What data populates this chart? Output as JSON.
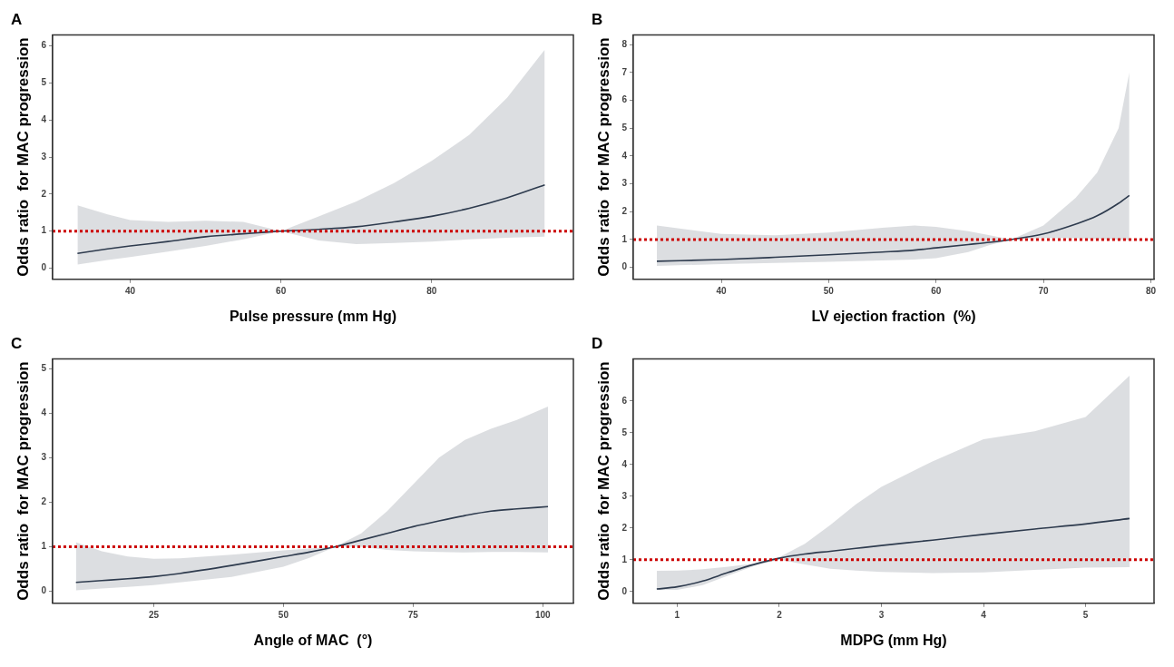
{
  "chart_data": [
    {
      "type": "line",
      "title": "A",
      "xlabel": "Pulse pressure (mm Hg)",
      "ylabel": "Odds ratio  for MAC progression",
      "xlim": [
        29.7,
        98.8
      ],
      "xticks": [
        40,
        60,
        80
      ],
      "ylim": [
        -0.3,
        6.3
      ],
      "yticks": [
        0,
        1,
        2,
        3,
        4,
        5,
        6
      ],
      "grid": false,
      "legend": false,
      "line_style": "solid",
      "marker": "none",
      "series": [
        {
          "color": "#2e3b4e",
          "x": [
            33,
            37,
            40,
            45,
            50,
            55,
            60,
            65,
            70,
            75,
            80,
            85,
            90,
            95
          ],
          "values": [
            0.4,
            0.52,
            0.6,
            0.72,
            0.85,
            0.93,
            1.0,
            1.05,
            1.12,
            1.25,
            1.4,
            1.62,
            1.9,
            2.25
          ],
          "lower": [
            0.1,
            0.22,
            0.3,
            0.45,
            0.6,
            0.78,
            1.0,
            0.75,
            0.65,
            0.68,
            0.72,
            0.78,
            0.82,
            0.85
          ],
          "upper": [
            1.7,
            1.45,
            1.3,
            1.25,
            1.28,
            1.25,
            1.0,
            1.4,
            1.8,
            2.3,
            2.9,
            3.6,
            4.6,
            5.9
          ]
        }
      ],
      "ref_lines": [
        {
          "axis": "y",
          "value": 1,
          "color": "#cc0000",
          "line_style": "dotted"
        }
      ]
    },
    {
      "type": "line",
      "title": "B",
      "xlabel": "LV ejection fraction  (%)",
      "ylabel": "Odds ratio  for MAC progression",
      "xlim": [
        31.8,
        80.3
      ],
      "xticks": [
        40,
        50,
        60,
        70,
        80
      ],
      "ylim": [
        -0.43,
        8.35
      ],
      "yticks": [
        0,
        1,
        2,
        3,
        4,
        5,
        6,
        7,
        8
      ],
      "grid": false,
      "legend": false,
      "line_style": "solid",
      "marker": "none",
      "series": [
        {
          "color": "#2e3b4e",
          "x": [
            34,
            40,
            45,
            50,
            55,
            58,
            60,
            63,
            65,
            67,
            70,
            73,
            75,
            77,
            78
          ],
          "values": [
            0.22,
            0.28,
            0.36,
            0.45,
            0.55,
            0.62,
            0.7,
            0.82,
            0.9,
            1.0,
            1.2,
            1.55,
            1.85,
            2.3,
            2.58
          ],
          "lower": [
            0.05,
            0.12,
            0.16,
            0.2,
            0.25,
            0.28,
            0.33,
            0.55,
            0.8,
            1.0,
            1.05,
            1.05,
            1.02,
            1.0,
            0.98
          ],
          "upper": [
            1.5,
            1.2,
            1.15,
            1.25,
            1.42,
            1.5,
            1.45,
            1.3,
            1.15,
            1.0,
            1.5,
            2.5,
            3.4,
            5.0,
            7.0
          ]
        }
      ],
      "ref_lines": [
        {
          "axis": "y",
          "value": 1,
          "color": "#cc0000",
          "line_style": "dotted"
        }
      ]
    },
    {
      "type": "line",
      "title": "C",
      "xlabel": "Angle of MAC  (°)",
      "ylabel": "Odds ratio  for MAC progression",
      "xlim": [
        5.5,
        105.9
      ],
      "xticks": [
        25,
        50,
        75,
        100
      ],
      "ylim": [
        -0.27,
        5.22
      ],
      "yticks": [
        0,
        1,
        2,
        3,
        4,
        5
      ],
      "grid": false,
      "legend": false,
      "line_style": "solid",
      "marker": "none",
      "series": [
        {
          "color": "#2e3b4e",
          "x": [
            10,
            15,
            20,
            25,
            30,
            40,
            50,
            55,
            60,
            65,
            70,
            75,
            80,
            85,
            90,
            95,
            101
          ],
          "values": [
            0.2,
            0.24,
            0.28,
            0.33,
            0.4,
            0.58,
            0.78,
            0.88,
            1.0,
            1.15,
            1.3,
            1.45,
            1.58,
            1.7,
            1.8,
            1.85,
            1.9
          ],
          "lower": [
            0.02,
            0.06,
            0.1,
            0.14,
            0.2,
            0.32,
            0.55,
            0.75,
            1.0,
            1.0,
            0.93,
            0.9,
            0.88,
            0.87,
            0.88,
            0.88,
            0.87
          ],
          "upper": [
            1.1,
            0.9,
            0.78,
            0.73,
            0.74,
            0.82,
            0.92,
            0.96,
            1.0,
            1.3,
            1.8,
            2.4,
            3.0,
            3.4,
            3.65,
            3.85,
            4.15
          ]
        }
      ],
      "ref_lines": [
        {
          "axis": "y",
          "value": 1,
          "color": "#cc0000",
          "line_style": "dotted"
        }
      ]
    },
    {
      "type": "line",
      "title": "D",
      "xlabel": "MDPG (mm Hg)",
      "ylabel": "Odds ratio  for MAC progression",
      "xlim": [
        0.57,
        5.67
      ],
      "xticks": [
        1,
        2,
        3,
        4,
        5
      ],
      "ylim": [
        -0.37,
        7.33
      ],
      "yticks": [
        0,
        1,
        2,
        3,
        4,
        5,
        6
      ],
      "grid": false,
      "legend": false,
      "line_style": "solid",
      "marker": "none",
      "series": [
        {
          "color": "#2e3b4e",
          "x": [
            0.8,
            1,
            1.25,
            1.5,
            1.75,
            2,
            2.25,
            2.5,
            2.75,
            3,
            3.5,
            4,
            4.5,
            5,
            5.43
          ],
          "values": [
            0.08,
            0.15,
            0.33,
            0.6,
            0.85,
            1.05,
            1.18,
            1.27,
            1.36,
            1.45,
            1.62,
            1.8,
            1.97,
            2.13,
            2.3
          ],
          "lower": [
            0.05,
            0.05,
            0.2,
            0.5,
            0.8,
            1.0,
            0.85,
            0.72,
            0.66,
            0.62,
            0.58,
            0.6,
            0.68,
            0.75,
            0.77
          ],
          "upper": [
            0.65,
            0.66,
            0.7,
            0.78,
            0.88,
            1.08,
            1.5,
            2.1,
            2.75,
            3.3,
            4.1,
            4.8,
            5.05,
            5.5,
            6.8
          ]
        }
      ],
      "ref_lines": [
        {
          "axis": "y",
          "value": 1,
          "color": "#cc0000",
          "line_style": "dotted"
        }
      ]
    }
  ]
}
